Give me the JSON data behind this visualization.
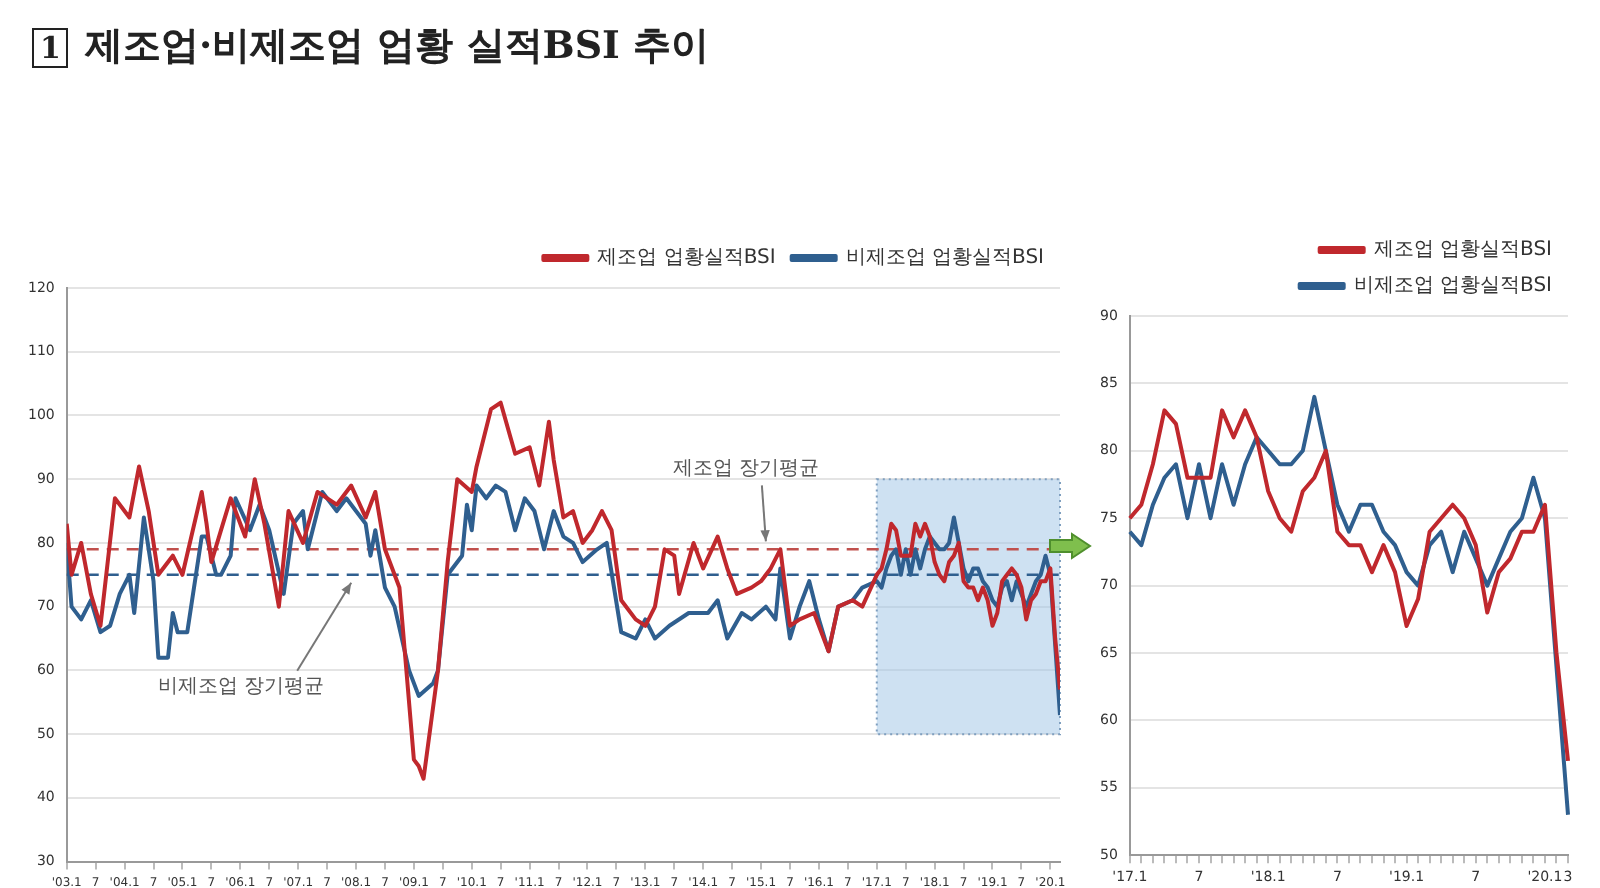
{
  "chart_data": [
    {
      "type": "line",
      "title": "1 제조업·비제조업 업황 실적BSI 추이",
      "xlim": [
        "2003-01",
        "2020-03"
      ],
      "ylim": [
        30,
        120
      ],
      "yticks": [
        30,
        40,
        50,
        60,
        70,
        80,
        90,
        100,
        110,
        120
      ],
      "xticks": [
        {
          "value": "2003-01",
          "label": "'03.1"
        },
        {
          "value": "2003-07",
          "label": "7"
        },
        {
          "value": "2004-01",
          "label": "'04.1"
        },
        {
          "value": "2004-07",
          "label": "7"
        },
        {
          "value": "2005-01",
          "label": "'05.1"
        },
        {
          "value": "2005-07",
          "label": "7"
        },
        {
          "value": "2006-01",
          "label": "'06.1"
        },
        {
          "value": "2006-07",
          "label": "7"
        },
        {
          "value": "2007-01",
          "label": "'07.1"
        },
        {
          "value": "2007-07",
          "label": "7"
        },
        {
          "value": "2008-01",
          "label": "'08.1"
        },
        {
          "value": "2008-07",
          "label": "7"
        },
        {
          "value": "2009-01",
          "label": "'09.1"
        },
        {
          "value": "2009-07",
          "label": "7"
        },
        {
          "value": "2010-01",
          "label": "'10.1"
        },
        {
          "value": "2010-07",
          "label": "7"
        },
        {
          "value": "2011-01",
          "label": "'11.1"
        },
        {
          "value": "2011-07",
          "label": "7"
        },
        {
          "value": "2012-01",
          "label": "'12.1"
        },
        {
          "value": "2012-07",
          "label": "7"
        },
        {
          "value": "2013-01",
          "label": "'13.1"
        },
        {
          "value": "2013-07",
          "label": "7"
        },
        {
          "value": "2014-01",
          "label": "'14.1"
        },
        {
          "value": "2014-07",
          "label": "7"
        },
        {
          "value": "2015-01",
          "label": "'15.1"
        },
        {
          "value": "2015-07",
          "label": "7"
        },
        {
          "value": "2016-01",
          "label": "'16.1"
        },
        {
          "value": "2016-07",
          "label": "7"
        },
        {
          "value": "2017-01",
          "label": "'17.1"
        },
        {
          "value": "2017-07",
          "label": "7"
        },
        {
          "value": "2018-01",
          "label": "'18.1"
        },
        {
          "value": "2018-07",
          "label": "7"
        },
        {
          "value": "2019-01",
          "label": "'19.1"
        },
        {
          "value": "2019-07",
          "label": "7"
        },
        {
          "value": "2020-01",
          "label": "'20.1"
        }
      ],
      "grid": "y",
      "legend": "top right",
      "marker": "none",
      "line_style": "solid",
      "series": [
        {
          "name": "제조업 업황실적BSI",
          "color": "#c0282d",
          "x": [
            "2003-01",
            "2003-02",
            "2003-04",
            "2003-06",
            "2003-08",
            "2003-11",
            "2004-02",
            "2004-04",
            "2004-06",
            "2004-08",
            "2004-11",
            "2005-01",
            "2005-05",
            "2005-06",
            "2005-07",
            "2005-09",
            "2005-11",
            "2006-02",
            "2006-04",
            "2006-06",
            "2006-09",
            "2006-11",
            "2007-02",
            "2007-05",
            "2007-09",
            "2007-12",
            "2008-03",
            "2008-05",
            "2008-07",
            "2008-10",
            "2009-01",
            "2009-02",
            "2009-03",
            "2009-06",
            "2009-08",
            "2009-10",
            "2010-01",
            "2010-02",
            "2010-05",
            "2010-07",
            "2010-10",
            "2011-01",
            "2011-03",
            "2011-05",
            "2011-06",
            "2011-08",
            "2011-10",
            "2011-12",
            "2012-02",
            "2012-04",
            "2012-06",
            "2012-08",
            "2012-11",
            "2013-01",
            "2013-03",
            "2013-05",
            "2013-07",
            "2013-08",
            "2013-11",
            "2014-01",
            "2014-04",
            "2014-06",
            "2014-08",
            "2014-11",
            "2015-01",
            "2015-03",
            "2015-05",
            "2015-07",
            "2015-09",
            "2015-12",
            "2016-03",
            "2016-05",
            "2016-08",
            "2016-10",
            "2017-01",
            "2017-02",
            "2017-03",
            "2017-04",
            "2017-05",
            "2017-06",
            "2017-07",
            "2017-08",
            "2017-09",
            "2017-10",
            "2017-11",
            "2017-12",
            "2018-01",
            "2018-02",
            "2018-03",
            "2018-04",
            "2018-05",
            "2018-06",
            "2018-07",
            "2018-08",
            "2018-09",
            "2018-10",
            "2018-11",
            "2018-12",
            "2019-01",
            "2019-02",
            "2019-03",
            "2019-04",
            "2019-05",
            "2019-06",
            "2019-07",
            "2019-08",
            "2019-09",
            "2019-10",
            "2019-11",
            "2019-12",
            "2020-01",
            "2020-02",
            "2020-03"
          ],
          "values": [
            83,
            75,
            80,
            72,
            67,
            87,
            84,
            92,
            85,
            75,
            78,
            75,
            88,
            83,
            77,
            82,
            87,
            81,
            90,
            83,
            70,
            85,
            80,
            88,
            86,
            89,
            84,
            88,
            79,
            73,
            46,
            45,
            43,
            60,
            77,
            90,
            88,
            92,
            101,
            102,
            94,
            95,
            89,
            99,
            93,
            84,
            85,
            80,
            82,
            85,
            82,
            71,
            68,
            67,
            70,
            79,
            78,
            72,
            80,
            76,
            81,
            76,
            72,
            73,
            74,
            76,
            79,
            67,
            68,
            69,
            63,
            70,
            71,
            70,
            75,
            76,
            79,
            83,
            82,
            78,
            78,
            78,
            83,
            81,
            83,
            81,
            77,
            75,
            74,
            77,
            78,
            80,
            74,
            73,
            73,
            71,
            73,
            71,
            67,
            69,
            74,
            75,
            76,
            75,
            73,
            68,
            71,
            72,
            74,
            74,
            76,
            65,
            57
          ]
        },
        {
          "name": "비제조업 업황실적BSI",
          "color": "#2f5f8f",
          "x": [
            "2003-01",
            "2003-02",
            "2003-04",
            "2003-06",
            "2003-08",
            "2003-10",
            "2003-12",
            "2004-02",
            "2004-03",
            "2004-05",
            "2004-07",
            "2004-08",
            "2004-10",
            "2004-11",
            "2004-12",
            "2005-02",
            "2005-05",
            "2005-06",
            "2005-08",
            "2005-09",
            "2005-11",
            "2005-12",
            "2006-03",
            "2006-05",
            "2006-07",
            "2006-10",
            "2006-12",
            "2007-02",
            "2007-03",
            "2007-06",
            "2007-09",
            "2007-11",
            "2008-03",
            "2008-04",
            "2008-05",
            "2008-07",
            "2008-09",
            "2008-12",
            "2009-02",
            "2009-05",
            "2009-06",
            "2009-08",
            "2009-11",
            "2009-12",
            "2010-01",
            "2010-02",
            "2010-04",
            "2010-06",
            "2010-08",
            "2010-10",
            "2010-12",
            "2011-02",
            "2011-04",
            "2011-06",
            "2011-08",
            "2011-10",
            "2011-12",
            "2012-03",
            "2012-05",
            "2012-08",
            "2012-11",
            "2013-01",
            "2013-03",
            "2013-06",
            "2013-10",
            "2014-02",
            "2014-04",
            "2014-06",
            "2014-09",
            "2014-11",
            "2015-02",
            "2015-04",
            "2015-05",
            "2015-07",
            "2015-09",
            "2015-11",
            "2016-01",
            "2016-03",
            "2016-05",
            "2016-08",
            "2016-10",
            "2017-01",
            "2017-02",
            "2017-03",
            "2017-04",
            "2017-05",
            "2017-06",
            "2017-07",
            "2017-08",
            "2017-09",
            "2017-10",
            "2017-11",
            "2017-12",
            "2018-01",
            "2018-02",
            "2018-03",
            "2018-04",
            "2018-05",
            "2018-06",
            "2018-07",
            "2018-08",
            "2018-09",
            "2018-10",
            "2018-11",
            "2018-12",
            "2019-01",
            "2019-02",
            "2019-03",
            "2019-04",
            "2019-05",
            "2019-06",
            "2019-07",
            "2019-08",
            "2019-09",
            "2019-10",
            "2019-11",
            "2019-12",
            "2020-01",
            "2020-02",
            "2020-03"
          ],
          "values": [
            80,
            70,
            68,
            71,
            66,
            67,
            72,
            75,
            69,
            84,
            74,
            62,
            62,
            69,
            66,
            66,
            81,
            81,
            75,
            75,
            78,
            87,
            82,
            86,
            82,
            72,
            83,
            85,
            79,
            88,
            85,
            87,
            83,
            78,
            82,
            73,
            70,
            60,
            56,
            58,
            60,
            75,
            78,
            86,
            82,
            89,
            87,
            89,
            88,
            82,
            87,
            85,
            79,
            85,
            81,
            80,
            77,
            79,
            80,
            66,
            65,
            68,
            65,
            67,
            69,
            69,
            71,
            65,
            69,
            68,
            70,
            68,
            76,
            65,
            70,
            74,
            68,
            63,
            70,
            71,
            73,
            74,
            73,
            76,
            78,
            79,
            75,
            79,
            75,
            79,
            76,
            79,
            81,
            80,
            79,
            79,
            80,
            84,
            80,
            76,
            74,
            76,
            76,
            74,
            73,
            71,
            70,
            73,
            74,
            71,
            74,
            72,
            70,
            72,
            74,
            75,
            78,
            75,
            64,
            53
          ]
        }
      ],
      "ref_lines": [
        {
          "axis": "y",
          "value": 79,
          "color": "#c0504d",
          "line_style": "dashed"
        },
        {
          "axis": "y",
          "value": 75,
          "color": "#2f5f8f",
          "line_style": "dashed"
        }
      ],
      "bands": [
        {
          "axis": "x",
          "from": "2017-01",
          "to": "2020-03",
          "color": "#9dc3e6"
        }
      ],
      "annotations": [
        {
          "text": "제조업 장기평균",
          "x": "2015-02",
          "y": 79
        },
        {
          "text": "비제조업 장기평균",
          "x": "2007-12",
          "y": 75
        }
      ]
    },
    {
      "type": "line",
      "categories": [
        "'17.1",
        null,
        null,
        null,
        null,
        null,
        "7",
        null,
        null,
        null,
        null,
        null,
        "'18.1",
        null,
        null,
        null,
        null,
        null,
        "7",
        null,
        null,
        null,
        null,
        null,
        "'19.1",
        null,
        null,
        null,
        null,
        null,
        "7",
        null,
        null,
        null,
        null,
        null,
        "'20.1",
        null,
        "3"
      ],
      "ylim": [
        50,
        90
      ],
      "yticks": [
        50,
        55,
        60,
        65,
        70,
        75,
        80,
        85,
        90
      ],
      "grid": "y",
      "legend": "top right",
      "marker": "none",
      "line_style": "solid",
      "series": [
        {
          "name": "제조업 업황실적BSI",
          "color": "#c0282d",
          "values": [
            75,
            76,
            79,
            83,
            82,
            78,
            78,
            78,
            83,
            81,
            83,
            81,
            77,
            75,
            74,
            77,
            78,
            80,
            74,
            73,
            73,
            71,
            73,
            71,
            67,
            69,
            74,
            75,
            76,
            75,
            73,
            68,
            71,
            72,
            74,
            74,
            76,
            65,
            57
          ]
        },
        {
          "name": "비제조업 업황실적BSI",
          "color": "#2f5f8f",
          "values": [
            74,
            73,
            76,
            78,
            79,
            75,
            79,
            75,
            79,
            76,
            79,
            81,
            80,
            79,
            79,
            80,
            84,
            80,
            76,
            74,
            76,
            76,
            74,
            73,
            71,
            70,
            73,
            74,
            71,
            74,
            72,
            70,
            72,
            74,
            75,
            78,
            75,
            64,
            53
          ]
        }
      ]
    }
  ]
}
